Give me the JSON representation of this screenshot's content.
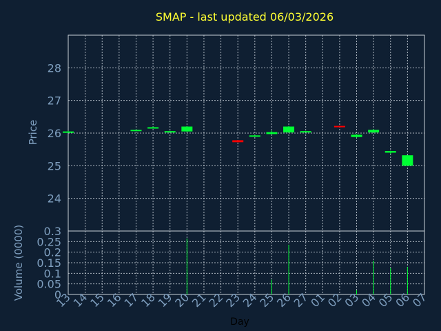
{
  "chart_data": {
    "type": "candlestick",
    "title": "SMAP - last updated 06/03/2026",
    "xlabel": "Day",
    "price_panel": {
      "ylabel": "Price",
      "ylim": [
        23.0,
        29.0
      ],
      "yticks": [
        "24",
        "25",
        "26",
        "27",
        "28"
      ],
      "ytick_values": [
        24,
        25,
        26,
        27,
        28
      ]
    },
    "volume_panel": {
      "ylabel": "Volume (0000)",
      "ylim": [
        0,
        0.3
      ],
      "yticks": [
        "0",
        "0.05",
        "0.1",
        "0.15",
        "0.2",
        "0.25",
        "0.3"
      ],
      "ytick_values": [
        0,
        0.05,
        0.1,
        0.15,
        0.2,
        0.25,
        0.3
      ]
    },
    "x_ticks": [
      "13",
      "14",
      "15",
      "16",
      "17",
      "18",
      "19",
      "20",
      "21",
      "22",
      "23",
      "24",
      "25",
      "26",
      "27",
      "01",
      "02",
      "03",
      "04",
      "05",
      "06",
      "07"
    ],
    "series": [
      {
        "day": "13",
        "open": 26.05,
        "close": 26.05,
        "high": 26.07,
        "low": 26.03,
        "volume": 0.0
      },
      {
        "day": "17",
        "open": 26.08,
        "close": 26.1,
        "high": 26.11,
        "low": 26.07,
        "volume": 0.0
      },
      {
        "day": "18",
        "open": 26.16,
        "close": 26.18,
        "high": 26.2,
        "low": 26.15,
        "volume": 0.0
      },
      {
        "day": "19",
        "open": 26.04,
        "close": 26.06,
        "high": 26.07,
        "low": 26.03,
        "volume": 0.0
      },
      {
        "day": "20",
        "open": 26.05,
        "close": 26.2,
        "high": 26.22,
        "low": 26.04,
        "volume": 0.265
      },
      {
        "day": "23",
        "open": 25.78,
        "close": 25.72,
        "high": 25.79,
        "low": 25.71,
        "volume": 0.0
      },
      {
        "day": "24",
        "open": 25.9,
        "close": 25.93,
        "high": 25.94,
        "low": 25.89,
        "volume": 0.0
      },
      {
        "day": "25",
        "open": 25.97,
        "close": 26.03,
        "high": 26.08,
        "low": 25.96,
        "volume": 0.07
      },
      {
        "day": "26",
        "open": 26.02,
        "close": 26.2,
        "high": 26.22,
        "low": 26.01,
        "volume": 0.235
      },
      {
        "day": "27",
        "open": 26.04,
        "close": 26.06,
        "high": 26.07,
        "low": 26.03,
        "volume": 0.0
      },
      {
        "day": "02",
        "open": 26.22,
        "close": 26.2,
        "high": 26.23,
        "low": 26.19,
        "volume": 0.0
      },
      {
        "day": "03",
        "open": 25.88,
        "close": 25.95,
        "high": 25.97,
        "low": 25.86,
        "volume": 0.02
      },
      {
        "day": "04",
        "open": 26.02,
        "close": 26.1,
        "high": 26.12,
        "low": 26.01,
        "volume": 0.16
      },
      {
        "day": "05",
        "open": 25.4,
        "close": 25.45,
        "high": 25.46,
        "low": 25.36,
        "volume": 0.125
      },
      {
        "day": "06",
        "open": 25.0,
        "close": 25.32,
        "high": 25.33,
        "low": 24.99,
        "volume": 0.13
      }
    ],
    "colors": {
      "up": "#00ff33",
      "down": "#ff0000",
      "grid": "#c8d0d8",
      "title": "#ffff33",
      "axis_text": "#7f9fbf",
      "background": "#0f1f32"
    },
    "grid": true
  }
}
